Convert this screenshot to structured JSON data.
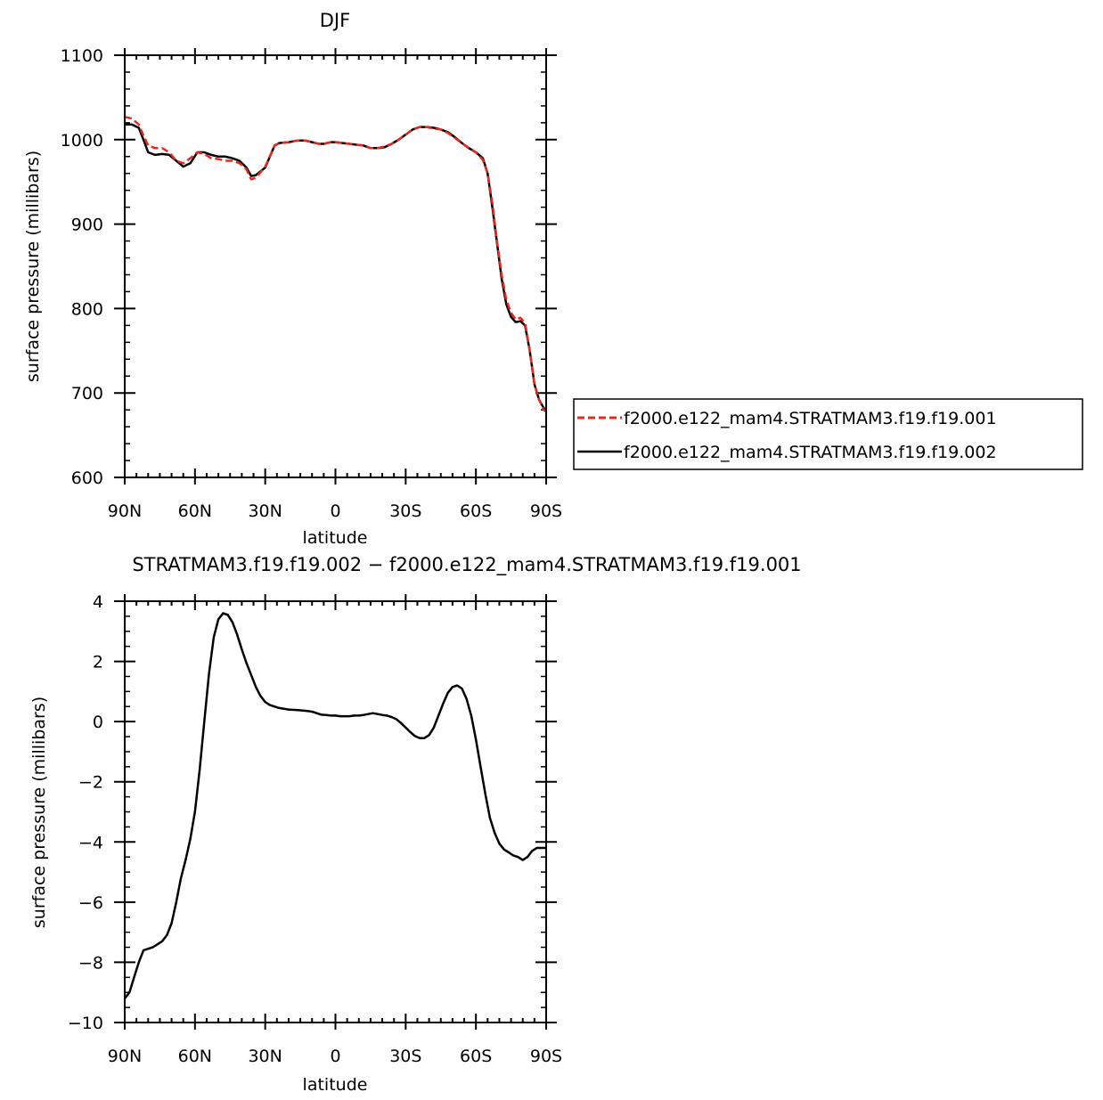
{
  "chart_data": [
    {
      "type": "line",
      "title": "DJF",
      "xlabel": "latitude",
      "ylabel": "surface pressure (millibars)",
      "xlim": [
        90,
        -90
      ],
      "ylim": [
        600,
        1100
      ],
      "x_ticks": [
        90,
        60,
        30,
        0,
        -30,
        -60,
        -90
      ],
      "x_tick_labels": [
        "90N",
        "60N",
        "30N",
        "0",
        "30S",
        "60S",
        "90S"
      ],
      "y_ticks": [
        600,
        700,
        800,
        900,
        1000,
        1100
      ],
      "y_tick_labels": [
        "600",
        "700",
        "800",
        "900",
        "1000",
        "1100"
      ],
      "legend_position": "right",
      "series": [
        {
          "name": "f2000.e122_mam4.STRATMAM3.f19.f19.001",
          "color": "#e8281e",
          "style": "dashed",
          "x": [
            90,
            87,
            84,
            82,
            80,
            77,
            74,
            71,
            68,
            65,
            62,
            59,
            56,
            53,
            50,
            47,
            44,
            41,
            38,
            36,
            34,
            30,
            26,
            24,
            20,
            16,
            13,
            10,
            7,
            5,
            2,
            0,
            -3,
            -6,
            -9,
            -12,
            -15,
            -18,
            -21,
            -24,
            -27,
            -30,
            -33,
            -36,
            -39,
            -42,
            -45,
            -48,
            -51,
            -54,
            -57,
            -60,
            -63,
            -65,
            -67,
            -69,
            -71,
            -73,
            -75,
            -77,
            -79,
            -81,
            -83,
            -85,
            -87,
            -89,
            -90
          ],
          "y": [
            1027,
            1025,
            1018,
            1005,
            993,
            990,
            990,
            985,
            975,
            972,
            978,
            985,
            983,
            978,
            977,
            975,
            975,
            972,
            965,
            953,
            955,
            968,
            993,
            996,
            997,
            999,
            999,
            997,
            995,
            995,
            997,
            997,
            996,
            995,
            994,
            993,
            990,
            990,
            992,
            995,
            1000,
            1006,
            1012,
            1015,
            1015,
            1013,
            1012,
            1008,
            1002,
            996,
            990,
            985,
            976,
            960,
            925,
            880,
            840,
            810,
            795,
            787,
            789,
            783,
            750,
            710,
            692,
            680,
            678
          ]
        },
        {
          "name": "f2000.e122_mam4.STRATMAM3.f19.f19.002",
          "color": "#000000",
          "style": "solid",
          "x": [
            90,
            87,
            84,
            82,
            80,
            77,
            74,
            71,
            68,
            65,
            62,
            59,
            56,
            53,
            50,
            47,
            44,
            41,
            38,
            36,
            34,
            30,
            26,
            24,
            20,
            16,
            13,
            10,
            7,
            5,
            2,
            0,
            -3,
            -6,
            -9,
            -12,
            -15,
            -18,
            -21,
            -24,
            -27,
            -30,
            -33,
            -36,
            -39,
            -42,
            -45,
            -48,
            -51,
            -54,
            -57,
            -60,
            -63,
            -65,
            -67,
            -69,
            -71,
            -73,
            -75,
            -77,
            -79,
            -81,
            -83,
            -85,
            -87,
            -89,
            -90
          ],
          "y": [
            1018,
            1018,
            1014,
            1000,
            985,
            982,
            983,
            982,
            975,
            968,
            972,
            985,
            985,
            982,
            980,
            980,
            978,
            975,
            967,
            957,
            958,
            967,
            993,
            996,
            997,
            999,
            999,
            997,
            995,
            995,
            997,
            997,
            996,
            995,
            994,
            993,
            990,
            990,
            991,
            995,
            1000,
            1006,
            1012,
            1015,
            1015,
            1014,
            1012,
            1009,
            1003,
            996,
            990,
            985,
            978,
            960,
            920,
            878,
            835,
            805,
            790,
            784,
            785,
            780,
            750,
            710,
            692,
            682,
            680
          ]
        }
      ]
    },
    {
      "type": "line",
      "title": "STRATMAM3.f19.f19.002 − f2000.e122_mam4.STRATMAM3.f19.f19.001",
      "xlabel": "latitude",
      "ylabel": "surface pressure (millibars)",
      "xlim": [
        90,
        -90
      ],
      "ylim": [
        -10,
        4
      ],
      "x_ticks": [
        90,
        60,
        30,
        0,
        -30,
        -60,
        -90
      ],
      "x_tick_labels": [
        "90N",
        "60N",
        "30N",
        "0",
        "30S",
        "60S",
        "90S"
      ],
      "y_ticks": [
        -10,
        -8,
        -6,
        -4,
        -2,
        0,
        2,
        4
      ],
      "y_tick_labels": [
        "−10",
        "−8",
        "−6",
        "−4",
        "−2",
        "0",
        "2",
        "4"
      ],
      "series": [
        {
          "color": "#000000",
          "style": "solid",
          "x": [
            90,
            88,
            86,
            84,
            82,
            80,
            78,
            76,
            74,
            72,
            70,
            68,
            66,
            64,
            62,
            60,
            58,
            56,
            54,
            52,
            50,
            48,
            46,
            44,
            42,
            40,
            38,
            36,
            34,
            32,
            30,
            28,
            24,
            20,
            16,
            12,
            10,
            8,
            6,
            4,
            2,
            0,
            -2,
            -4,
            -6,
            -8,
            -10,
            -12,
            -14,
            -16,
            -18,
            -20,
            -22,
            -24,
            -26,
            -28,
            -30,
            -32,
            -34,
            -36,
            -38,
            -40,
            -42,
            -44,
            -46,
            -48,
            -50,
            -52,
            -54,
            -56,
            -58,
            -60,
            -62,
            -64,
            -66,
            -68,
            -70,
            -72,
            -74,
            -76,
            -78,
            -80,
            -82,
            -84,
            -86,
            -88,
            -90
          ],
          "y": [
            -9.2,
            -9.0,
            -8.5,
            -8.0,
            -7.6,
            -7.55,
            -7.5,
            -7.4,
            -7.3,
            -7.1,
            -6.7,
            -6.0,
            -5.2,
            -4.6,
            -3.9,
            -3.0,
            -1.6,
            0.0,
            1.6,
            2.8,
            3.4,
            3.6,
            3.55,
            3.3,
            2.9,
            2.4,
            1.95,
            1.55,
            1.15,
            0.85,
            0.65,
            0.55,
            0.45,
            0.4,
            0.38,
            0.35,
            0.33,
            0.28,
            0.23,
            0.22,
            0.2,
            0.2,
            0.18,
            0.18,
            0.18,
            0.2,
            0.2,
            0.22,
            0.25,
            0.28,
            0.25,
            0.22,
            0.2,
            0.15,
            0.08,
            -0.05,
            -0.2,
            -0.35,
            -0.48,
            -0.55,
            -0.55,
            -0.45,
            -0.2,
            0.2,
            0.6,
            0.95,
            1.15,
            1.2,
            1.1,
            0.75,
            0.2,
            -0.6,
            -1.5,
            -2.4,
            -3.2,
            -3.7,
            -4.05,
            -4.25,
            -4.35,
            -4.45,
            -4.5,
            -4.6,
            -4.5,
            -4.3,
            -4.2,
            -4.2,
            -4.2
          ]
        }
      ]
    }
  ]
}
